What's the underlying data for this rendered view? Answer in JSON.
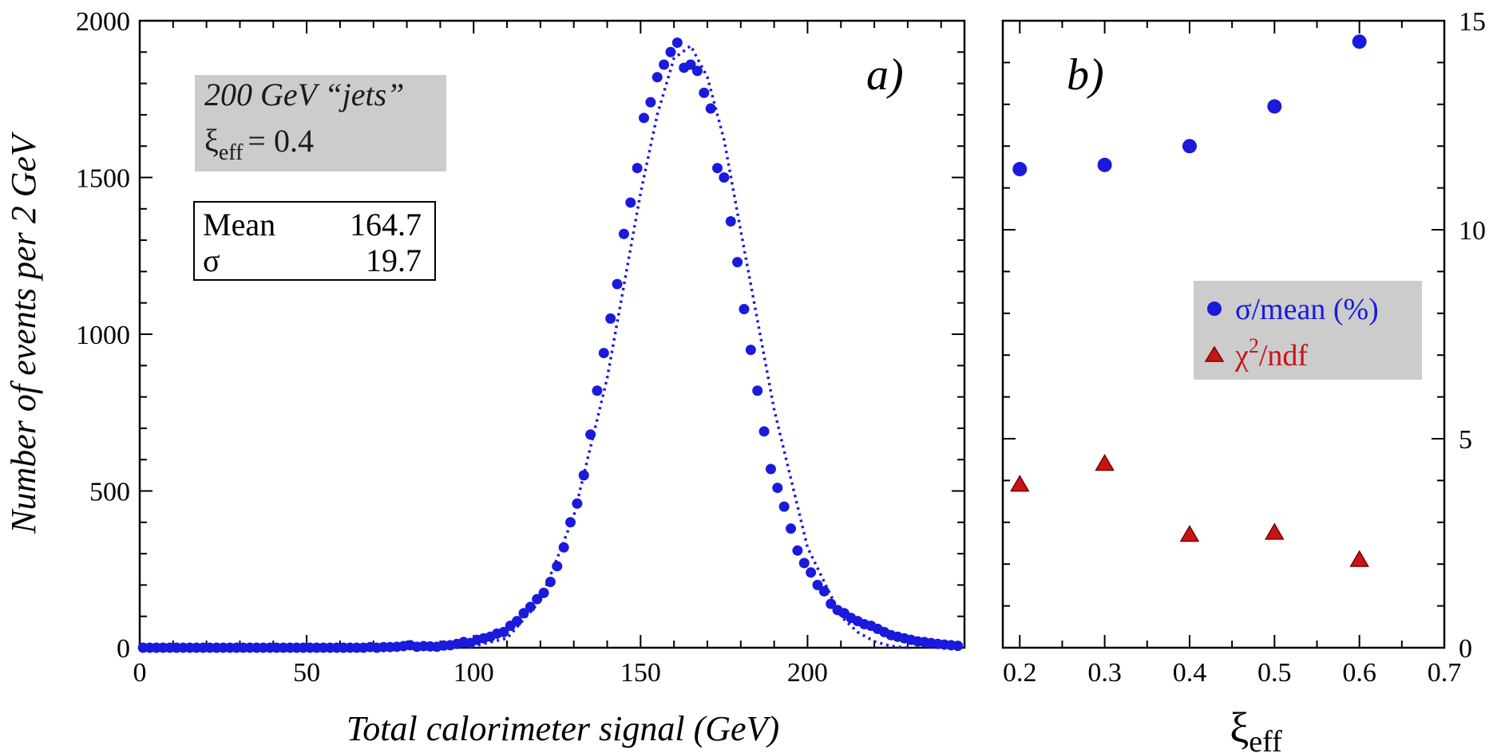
{
  "chart_data": [
    {
      "panel_label": "a)",
      "type": "scatter",
      "xlabel": "Total calorimeter signal (GeV)",
      "ylabel": "Number of events per 2 GeV",
      "xlim": [
        0,
        247
      ],
      "ylim": [
        0,
        2000
      ],
      "x_ticks": [
        0,
        50,
        100,
        150,
        200
      ],
      "y_ticks": [
        0,
        500,
        1000,
        1500,
        2000
      ],
      "grid": false,
      "info_box": {
        "line1": "200 GeV “jets”",
        "xi_symbol": "ξ",
        "xi_sub": "eff",
        "xi_value": "= 0.4"
      },
      "stats_box": {
        "mean_label": "Mean",
        "mean_value": "164.7",
        "sigma_label": "σ",
        "sigma_value": "19.7"
      },
      "colors": {
        "points": "#1a1adc",
        "fit": "#1a1adc",
        "info_box_bg": "#cccccc"
      },
      "series": [
        {
          "style": "points",
          "x": [
            1,
            3,
            5,
            7,
            9,
            11,
            13,
            15,
            17,
            19,
            21,
            23,
            25,
            27,
            29,
            31,
            33,
            35,
            37,
            39,
            41,
            43,
            45,
            47,
            49,
            51,
            53,
            55,
            57,
            59,
            61,
            63,
            65,
            67,
            69,
            71,
            73,
            75,
            77,
            79,
            81,
            83,
            85,
            87,
            89,
            91,
            93,
            95,
            97,
            99,
            101,
            103,
            105,
            107,
            109,
            111,
            113,
            115,
            117,
            119,
            121,
            123,
            125,
            127,
            129,
            131,
            133,
            135,
            137,
            139,
            141,
            143,
            145,
            147,
            149,
            151,
            153,
            155,
            157,
            159,
            161,
            163,
            165,
            167,
            169,
            171,
            173,
            175,
            177,
            179,
            181,
            183,
            185,
            187,
            189,
            191,
            193,
            195,
            197,
            199,
            201,
            203,
            205,
            207,
            209,
            211,
            213,
            215,
            217,
            219,
            221,
            223,
            225,
            227,
            229,
            231,
            233,
            235,
            237,
            239,
            241,
            243,
            245
          ],
          "y": [
            0,
            0,
            0,
            0,
            0,
            0,
            0,
            0,
            0,
            0,
            0,
            0,
            0,
            0,
            0,
            0,
            0,
            0,
            0,
            0,
            0,
            0,
            0,
            0,
            0,
            0,
            0,
            0,
            0,
            0,
            0,
            0,
            0,
            0,
            2,
            0,
            2,
            2,
            3,
            5,
            8,
            3,
            5,
            4,
            3,
            7,
            8,
            12,
            18,
            15,
            25,
            30,
            35,
            45,
            50,
            70,
            85,
            110,
            130,
            155,
            175,
            210,
            260,
            320,
            400,
            460,
            550,
            680,
            820,
            940,
            1050,
            1160,
            1320,
            1420,
            1530,
            1690,
            1740,
            1820,
            1860,
            1900,
            1930,
            1850,
            1860,
            1840,
            1770,
            1720,
            1530,
            1500,
            1360,
            1230,
            1080,
            950,
            820,
            690,
            570,
            510,
            450,
            380,
            310,
            270,
            240,
            200,
            180,
            140,
            120,
            110,
            95,
            85,
            75,
            70,
            60,
            50,
            40,
            35,
            30,
            25,
            20,
            18,
            15,
            12,
            10,
            8,
            6
          ]
        },
        {
          "style": "dotted-line",
          "x": [
            0,
            100,
            110,
            120,
            130,
            140,
            150,
            155,
            160,
            165,
            170,
            175,
            180,
            190,
            200,
            210,
            215,
            220,
            225,
            230
          ],
          "y": [
            0,
            5,
            30,
            150,
            420,
            860,
            1450,
            1700,
            1880,
            1920,
            1820,
            1620,
            1330,
            760,
            320,
            100,
            50,
            20,
            5,
            0
          ]
        }
      ]
    },
    {
      "panel_label": "b)",
      "type": "scatter",
      "xlabel_symbol": "ξ",
      "xlabel_sub": "eff",
      "xlim": [
        0.18,
        0.7
      ],
      "ylim": [
        0,
        15
      ],
      "x_ticks": [
        "0.2",
        "0.3",
        "0.4",
        "0.5",
        "0.6",
        "0.7"
      ],
      "y_ticks": [
        "0",
        "5",
        "10",
        "15"
      ],
      "y_axis_side": "right",
      "grid": false,
      "legend_placement": "right",
      "colors": {
        "sigma_points": "#1a1adc",
        "chi2_points": "#c81414",
        "legend_bg": "#cccccc"
      },
      "series": [
        {
          "name": "σ/mean (%)",
          "marker": "circle",
          "x": [
            0.2,
            0.3,
            0.4,
            0.5,
            0.6
          ],
          "y": [
            11.45,
            11.55,
            12.0,
            12.95,
            14.5
          ]
        },
        {
          "name_symbol": "χ",
          "name_sup": "2",
          "name_rest": "/ndf",
          "marker": "triangle",
          "x": [
            0.2,
            0.3,
            0.4,
            0.5,
            0.6
          ],
          "y": [
            3.9,
            4.4,
            2.7,
            2.75,
            2.1
          ]
        }
      ]
    }
  ]
}
